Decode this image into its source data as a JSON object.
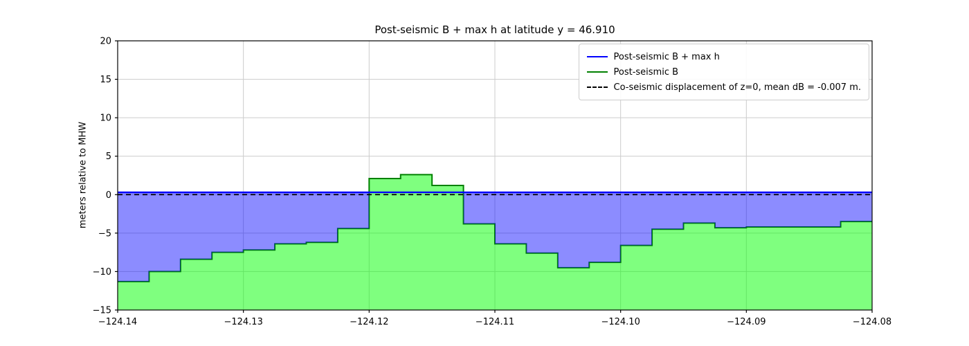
{
  "chart_data": {
    "type": "area",
    "title": "Post-seismic B + max h at latitude y = 46.910",
    "ylabel": "meters relative to MHW",
    "xlim": [
      -124.14,
      -124.08
    ],
    "ylim": [
      -15,
      20
    ],
    "grid": true,
    "legend_position": "upper right",
    "x_ticks": [
      {
        "v": -124.14,
        "label": "−124.14"
      },
      {
        "v": -124.13,
        "label": "−124.13"
      },
      {
        "v": -124.12,
        "label": "−124.12"
      },
      {
        "v": -124.11,
        "label": "−124.11"
      },
      {
        "v": -124.1,
        "label": "−124.10"
      },
      {
        "v": -124.09,
        "label": "−124.09"
      },
      {
        "v": -124.08,
        "label": "−124.08"
      }
    ],
    "y_ticks": [
      {
        "v": -15,
        "label": "−15"
      },
      {
        "v": -10,
        "label": "−10"
      },
      {
        "v": -5,
        "label": "−5"
      },
      {
        "v": 0,
        "label": "0"
      },
      {
        "v": 5,
        "label": "5"
      },
      {
        "v": 10,
        "label": "10"
      },
      {
        "v": 15,
        "label": "15"
      },
      {
        "v": 20,
        "label": "20"
      }
    ],
    "colors": {
      "b_plus_h_line": "#0000ff",
      "b_line": "#008000",
      "b_fill": "rgba(0,255,0,0.5)",
      "between_fill": "rgba(0,0,255,0.45)",
      "dashed_line": "#000000",
      "grid": "#cccccc",
      "spine": "#000000"
    },
    "legend": [
      {
        "label": "Post-seismic B + max h",
        "color": "#0000ff",
        "style": "solid"
      },
      {
        "label": "Post-seismic B",
        "color": "#008000",
        "style": "solid"
      },
      {
        "label": "Co-seismic displacement of z=0, mean dB = -0.007 m.",
        "color": "#000000",
        "style": "dashed"
      }
    ],
    "series": [
      {
        "name": "Post-seismic B + max h",
        "type": "hline_fill",
        "level": 0.3
      },
      {
        "name": "Post-seismic B",
        "type": "step",
        "x_edges": [
          -124.14,
          -124.1375,
          -124.135,
          -124.1325,
          -124.13,
          -124.1275,
          -124.125,
          -124.1225,
          -124.12,
          -124.1175,
          -124.115,
          -124.1125,
          -124.11,
          -124.1075,
          -124.105,
          -124.1025,
          -124.1,
          -124.0975,
          -124.095,
          -124.0925,
          -124.09,
          -124.0875,
          -124.085,
          -124.0825,
          -124.08
        ],
        "values": [
          -11.3,
          -10.0,
          -8.4,
          -7.5,
          -7.2,
          -6.4,
          -6.2,
          -4.4,
          2.1,
          2.6,
          1.2,
          -3.8,
          -6.4,
          -7.6,
          -9.5,
          -8.8,
          -6.6,
          -4.5,
          -3.7,
          -4.3,
          -4.2,
          -4.2,
          -4.2,
          -3.5
        ]
      },
      {
        "name": "Co-seismic displacement of z=0",
        "type": "hline_dashed",
        "level": 0.0
      }
    ]
  }
}
